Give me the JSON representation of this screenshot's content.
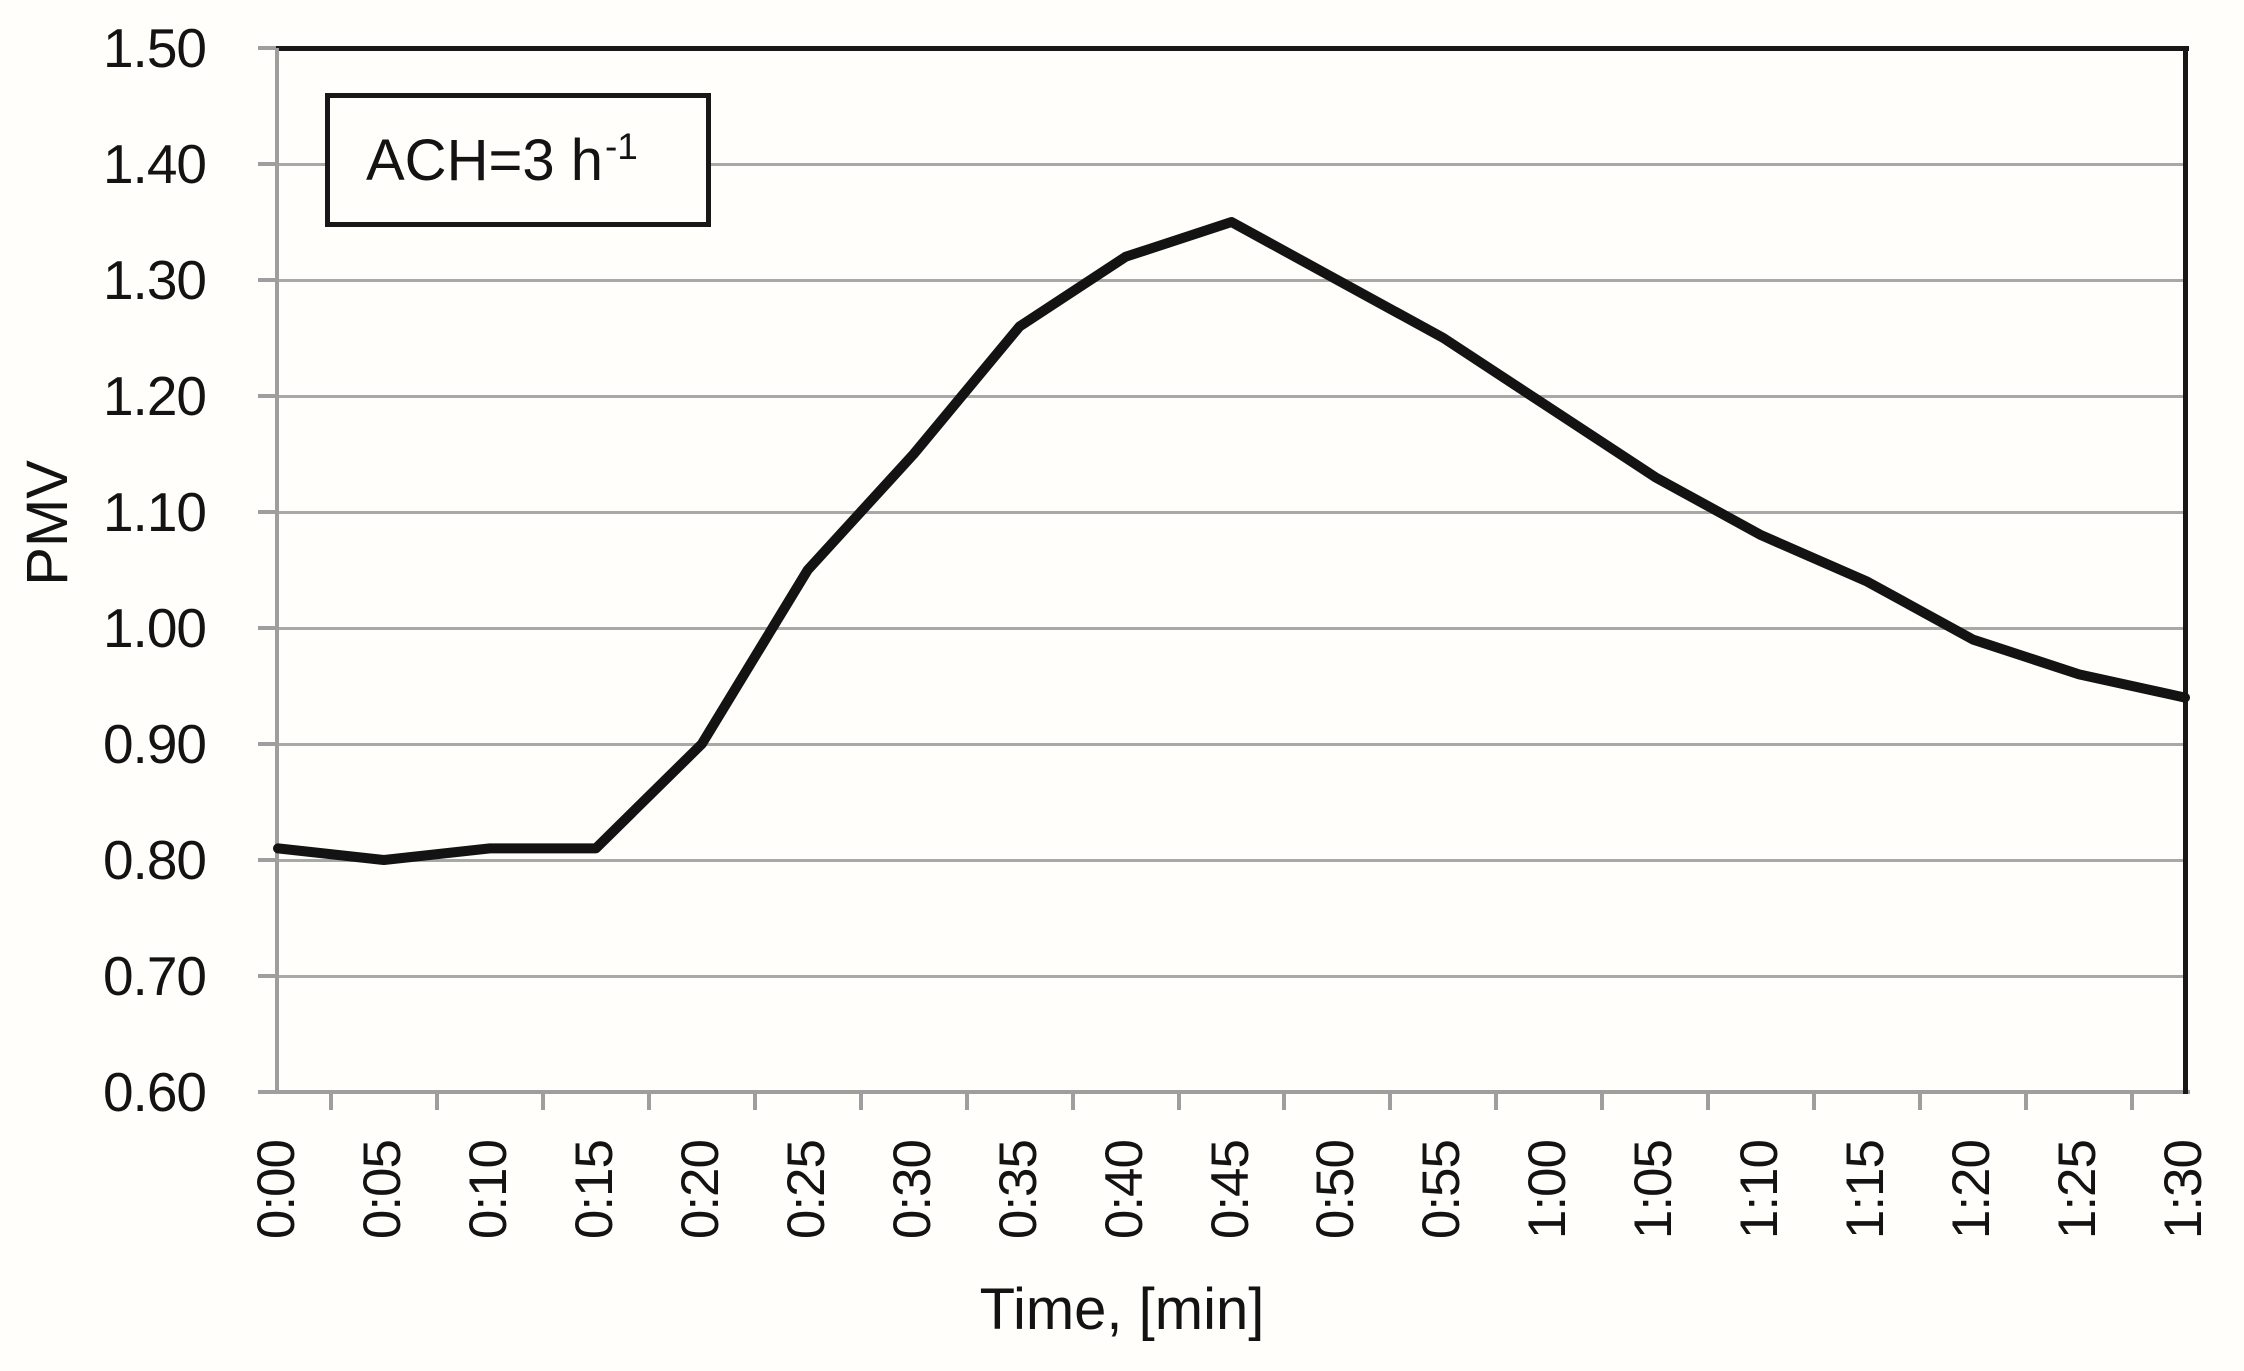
{
  "figure": {
    "annotation": {
      "text": "ACH=3 h",
      "superscript": "-1"
    },
    "y_axis": {
      "title": "PMV"
    },
    "x_axis": {
      "title": "Time, [min]"
    }
  },
  "chart_data": {
    "type": "line",
    "title": "",
    "annotation": "ACH=3 h⁻¹",
    "x": [
      "0:00",
      "0:05",
      "0:10",
      "0:15",
      "0:20",
      "0:25",
      "0:30",
      "0:35",
      "0:40",
      "0:45",
      "0:50",
      "0:55",
      "1:00",
      "1:05",
      "1:10",
      "1:15",
      "1:20",
      "1:25",
      "1:30"
    ],
    "series": [
      {
        "name": "PMV",
        "values": [
          0.81,
          0.8,
          0.81,
          0.81,
          0.9,
          1.05,
          1.15,
          1.26,
          1.32,
          1.35,
          1.3,
          1.25,
          1.19,
          1.13,
          1.08,
          1.04,
          0.99,
          0.96,
          0.94
        ]
      }
    ],
    "xlabel": "Time, [min]",
    "ylabel": "PMV",
    "ylim": [
      0.6,
      1.5
    ],
    "y_tick_step": 0.1,
    "y_tick_format": "2-decimals",
    "grid": "horizontal",
    "legend": "none",
    "line_color": "#131313",
    "gridline_color": "#a8a8a8",
    "axis_color": "#9e9e9e",
    "border_color": "#181818",
    "background_color": "#fffefa"
  }
}
